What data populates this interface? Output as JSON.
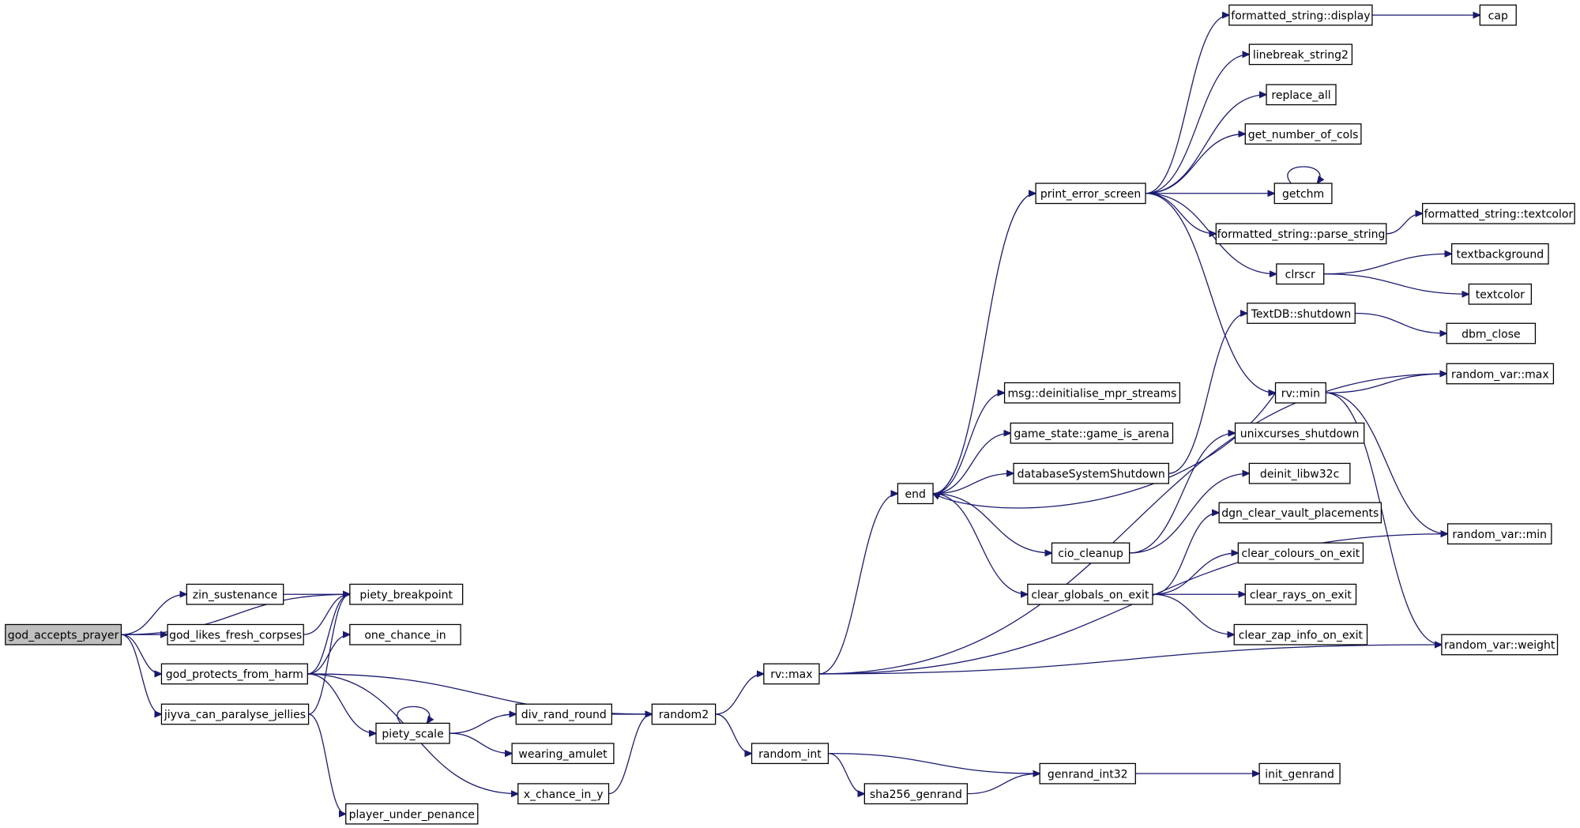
{
  "nodes": [
    {
      "label": "god_accepts_prayer"
    },
    {
      "label": "zin_sustenance"
    },
    {
      "label": "piety_breakpoint"
    },
    {
      "label": "god_likes_fresh_corpses"
    },
    {
      "label": "one_chance_in"
    },
    {
      "label": "god_protects_from_harm"
    },
    {
      "label": "jiyva_can_paralyse_jellies"
    },
    {
      "label": "player_under_penance"
    },
    {
      "label": "piety_scale"
    },
    {
      "label": "div_rand_round"
    },
    {
      "label": "wearing_amulet"
    },
    {
      "label": "x_chance_in_y"
    },
    {
      "label": "random2"
    },
    {
      "label": "rv::max"
    },
    {
      "label": "random_int"
    },
    {
      "label": "sha256_genrand"
    },
    {
      "label": "genrand_int32"
    },
    {
      "label": "init_genrand"
    },
    {
      "label": "end"
    },
    {
      "label": "print_error_screen"
    },
    {
      "label": "formatted_string::display"
    },
    {
      "label": "cap"
    },
    {
      "label": "linebreak_string2"
    },
    {
      "label": "replace_all"
    },
    {
      "label": "get_number_of_cols"
    },
    {
      "label": "getchm"
    },
    {
      "label": "formatted_string::parse_string"
    },
    {
      "label": "formatted_string::textcolor"
    },
    {
      "label": "clrscr"
    },
    {
      "label": "textbackground"
    },
    {
      "label": "textcolor"
    },
    {
      "label": "TextDB::shutdown"
    },
    {
      "label": "dbm_close"
    },
    {
      "label": "random_var::max"
    },
    {
      "label": "rv::min"
    },
    {
      "label": "msg::deinitialise_mpr_streams"
    },
    {
      "label": "game_state::game_is_arena"
    },
    {
      "label": "databaseSystemShutdown"
    },
    {
      "label": "unixcurses_shutdown"
    },
    {
      "label": "deinit_libw32c"
    },
    {
      "label": "cio_cleanup"
    },
    {
      "label": "dgn_clear_vault_placements"
    },
    {
      "label": "clear_colours_on_exit"
    },
    {
      "label": "clear_globals_on_exit"
    },
    {
      "label": "clear_rays_on_exit"
    },
    {
      "label": "clear_zap_info_on_exit"
    },
    {
      "label": "random_var::min"
    },
    {
      "label": "random_var::weight"
    }
  ]
}
